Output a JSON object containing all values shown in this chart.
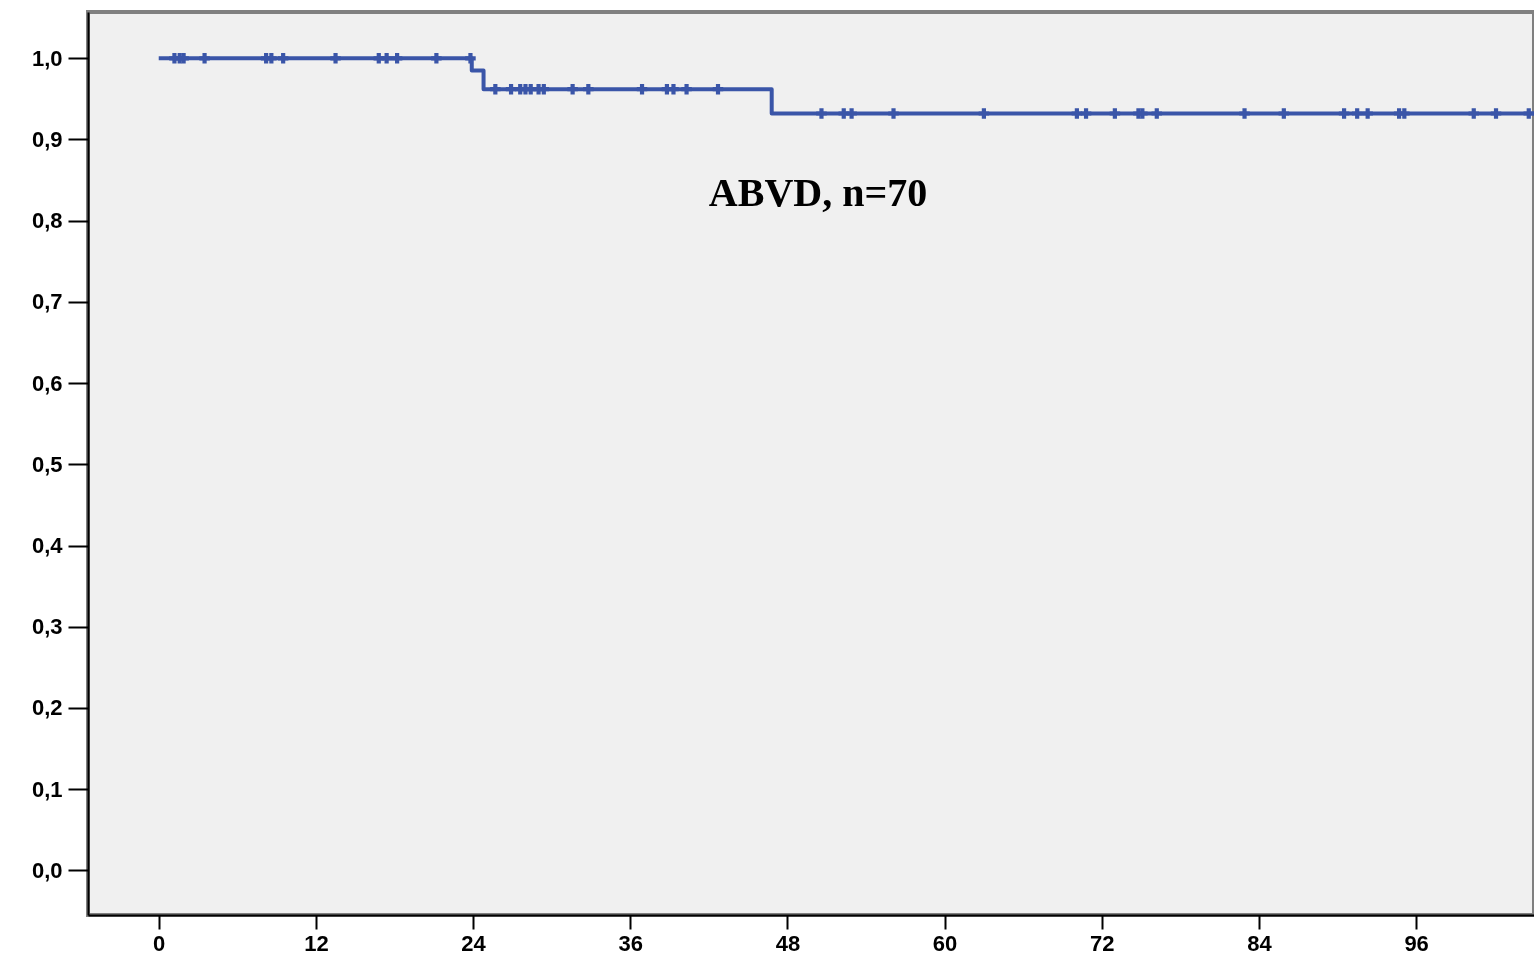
{
  "chart_data": {
    "type": "step",
    "xlim": [
      -5.4,
      105
    ],
    "xticks": [
      0,
      12,
      24,
      36,
      48,
      60,
      72,
      84,
      96
    ],
    "ylim": [
      -0.055,
      1.057
    ],
    "yticks": [
      {
        "value": 0,
        "label": "0,0"
      },
      {
        "value": 0.1,
        "label": "0,1"
      },
      {
        "value": 0.2,
        "label": "0,2"
      },
      {
        "value": 0.3,
        "label": "0,3"
      },
      {
        "value": 0.4,
        "label": "0,4"
      },
      {
        "value": 0.5,
        "label": "0,5"
      },
      {
        "value": 0.6,
        "label": "0,6"
      },
      {
        "value": 0.7,
        "label": "0,7"
      },
      {
        "value": 0.8,
        "label": "0,8"
      },
      {
        "value": 0.9,
        "label": "0,9"
      },
      {
        "value": 1,
        "label": "1,0"
      }
    ],
    "series": [
      {
        "color": "#3a55a8",
        "x": [
          0,
          23.9,
          24.8,
          46.8,
          105
        ],
        "values": [
          1,
          0.985,
          0.962,
          0.932,
          0.932
        ]
      },
      {
        "type": "scatter",
        "marker": "cross",
        "color": "#3a55a8",
        "x": [
          1.2,
          1.6,
          1.9,
          3.5,
          8.2,
          8.6,
          9.5,
          13.5,
          16.8,
          17.4,
          18.2,
          21.2,
          23.8,
          25.7,
          26.9,
          27.6,
          28.0,
          28.4,
          29.0,
          29.4,
          31.6,
          32.8,
          36.9,
          38.8,
          39.3,
          40.3,
          42.7,
          50.6,
          52.3,
          52.9,
          56.1,
          63.0,
          70.1,
          70.8,
          73.0,
          74.8,
          75.1,
          76.2,
          82.9,
          85.9,
          90.5,
          91.5,
          92.3,
          94.7,
          95.1,
          100.4,
          102.1,
          104.6
        ],
        "values": [
          1,
          1,
          1,
          1,
          1,
          1,
          1,
          1,
          1,
          1,
          1,
          1,
          1,
          0.962,
          0.962,
          0.962,
          0.962,
          0.962,
          0.962,
          0.962,
          0.962,
          0.962,
          0.962,
          0.962,
          0.962,
          0.962,
          0.962,
          0.932,
          0.932,
          0.932,
          0.932,
          0.932,
          0.932,
          0.932,
          0.932,
          0.932,
          0.932,
          0.932,
          0.932,
          0.932,
          0.932,
          0.932,
          0.932,
          0.932,
          0.932,
          0.932,
          0.932,
          0.932
        ]
      }
    ],
    "annotations": [
      "ABVD, n=70"
    ],
    "grid": false
  }
}
